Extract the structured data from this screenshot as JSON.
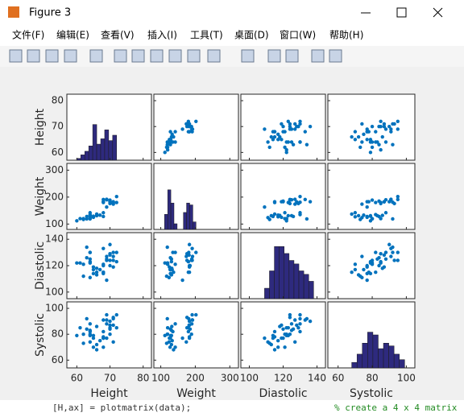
{
  "window": {
    "title": "Figure 3",
    "menu": [
      "文件(F)",
      "编辑(E)",
      "查看(V)",
      "插入(I)",
      "工具(T)",
      "桌面(D)",
      "窗口(W)",
      "帮助(H)"
    ]
  },
  "background_text": {
    "code": "[H,ax] = plotmatrix(data);",
    "comment": "% create a 4 x 4 matrix"
  },
  "chart_data": {
    "type": "plotmatrix",
    "marker_color": "#0072bd",
    "hist_color": "#2e2a7e",
    "variables": [
      {
        "name": "Height",
        "lim": [
          57,
          82.5
        ],
        "ticks": [
          60,
          70,
          80
        ],
        "values": [
          71,
          69,
          64,
          67,
          64,
          68,
          64,
          68,
          68,
          66,
          68,
          66,
          71,
          72,
          65,
          71,
          69,
          64,
          63,
          62,
          64,
          61,
          68,
          70,
          72,
          71,
          69,
          68,
          60,
          70,
          64,
          66,
          70,
          63,
          65,
          70,
          69,
          65,
          62,
          70
        ],
        "hist": {
          "bins": [
            60,
            61.2,
            62.4,
            63.6,
            64.8,
            66,
            67.2,
            68.4,
            69.6,
            70.8,
            72
          ],
          "counts": [
            1,
            3,
            5,
            8,
            20,
            9,
            12,
            17,
            11,
            14
          ],
          "ylim": [
            0,
            37
          ]
        }
      },
      {
        "name": "Weight",
        "lim": [
          80,
          325
        ],
        "ticks": [
          100,
          200,
          300
        ],
        "values": [
          176,
          163,
          131,
          133,
          119,
          142,
          142,
          180,
          183,
          132,
          128,
          137,
          174,
          202,
          129,
          181,
          191,
          131,
          119,
          120,
          135,
          120,
          183,
          189,
          180,
          183,
          190,
          191,
          112,
          176,
          124,
          131,
          183,
          128,
          127,
          185,
          192,
          125,
          117,
          182
        ],
        "hist": {
          "bins": [
            111,
            120.1,
            129.2,
            138.3,
            147.4,
            156.5,
            165.6,
            174.7,
            183.8,
            192.9,
            202
          ],
          "counts": [
            8,
            21,
            14,
            3,
            0,
            0,
            9,
            14,
            13,
            4
          ],
          "ylim": [
            0,
            35
          ]
        }
      },
      {
        "name": "Diastolic",
        "lim": [
          95,
          145
        ],
        "ticks": [
          100,
          120,
          140
        ],
        "values": [
          124,
          109,
          125,
          117,
          122,
          121,
          130,
          115,
          115,
          118,
          114,
          115,
          127,
          130,
          114,
          130,
          124,
          123,
          134,
          121,
          130,
          122,
          120,
          124,
          123,
          119,
          125,
          133,
          122,
          129,
          111,
          113,
          136,
          126,
          117,
          120,
          127,
          119,
          112,
          128
        ],
        "hist": {
          "bins": [
            109,
            111.9,
            114.8,
            117.7,
            120.6,
            123.5,
            126.4,
            129.3,
            132.2,
            135.1,
            138
          ],
          "counts": [
            3,
            8,
            15,
            15,
            13,
            11,
            10,
            8,
            7,
            5
          ],
          "ylim": [
            0,
            19
          ]
        }
      },
      {
        "name": "Systolic",
        "lim": [
          54,
          105
        ],
        "ticks": [
          60,
          80,
          100
        ],
        "values": [
          93,
          77,
          83,
          75,
          80,
          70,
          88,
          82,
          78,
          86,
          77,
          68,
          74,
          95,
          79,
          92,
          95,
          79,
          92,
          80,
          82,
          85,
          77,
          80,
          85,
          87,
          88,
          91,
          79,
          85,
          74,
          72,
          90,
          84,
          70,
          84,
          91,
          77,
          73,
          87
        ],
        "hist": {
          "bins": [
            68,
            71.1,
            74.2,
            77.3,
            80.4,
            83.5,
            86.6,
            89.7,
            92.8,
            95.9,
            99
          ],
          "counts": [
            2,
            5,
            9,
            13,
            12,
            7,
            9,
            8,
            5,
            3
          ],
          "ylim": [
            0,
            24
          ]
        }
      }
    ]
  }
}
